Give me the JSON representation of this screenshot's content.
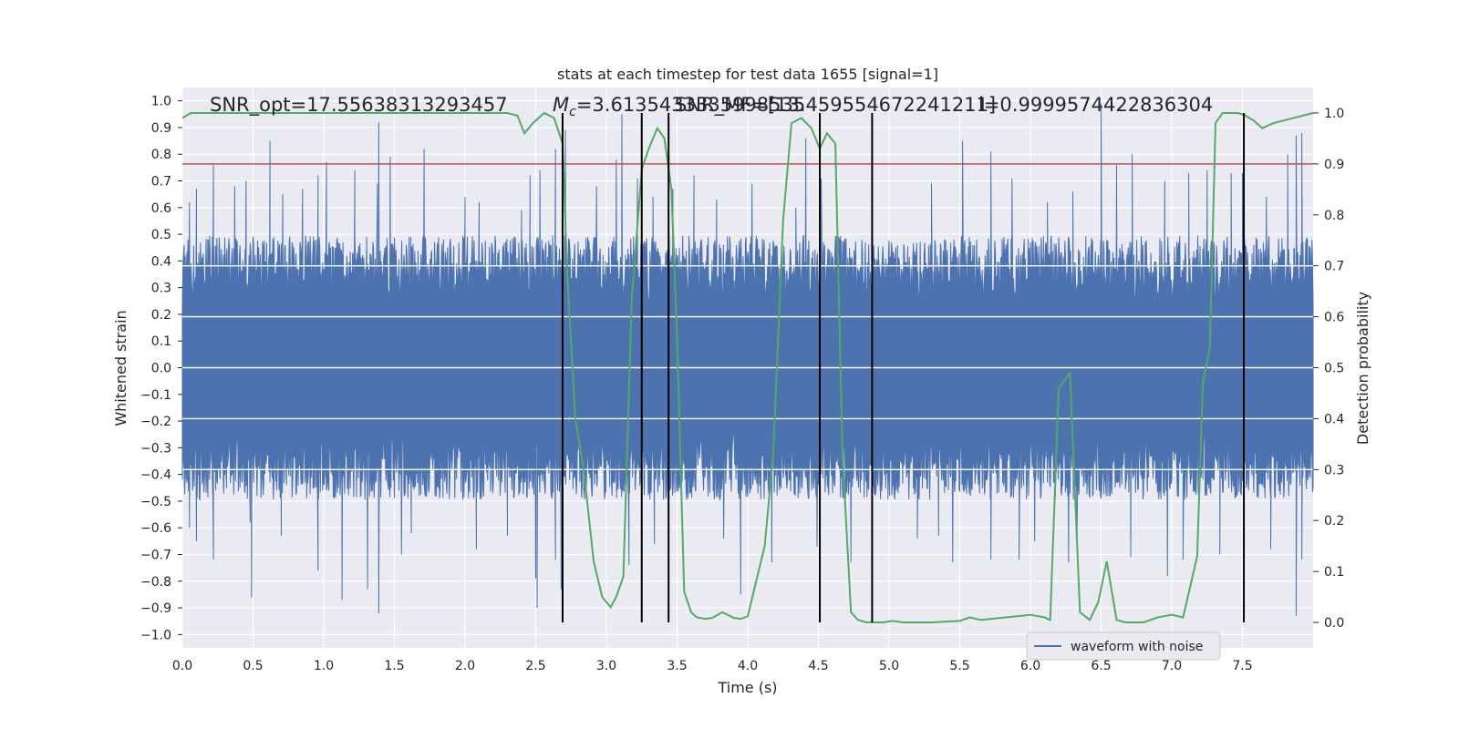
{
  "chart_data": {
    "type": "line",
    "title": "stats at each timestep for test data 1655 [signal=1]",
    "xlabel": "Time (s)",
    "ylabel": "Whitened strain",
    "y2label": "Detection probability",
    "xlim": [
      0.0,
      8.0
    ],
    "ylim": [
      -1.05,
      1.05
    ],
    "y2lim": [
      -0.05,
      1.05
    ],
    "xticks": [
      "0.0",
      "0.5",
      "1.0",
      "1.5",
      "2.0",
      "2.5",
      "3.0",
      "3.5",
      "4.0",
      "4.5",
      "5.0",
      "5.5",
      "6.0",
      "6.5",
      "7.0",
      "7.5"
    ],
    "yticks": [
      "1.0",
      "0.9",
      "0.8",
      "0.7",
      "0.6",
      "0.5",
      "0.4",
      "0.3",
      "0.2",
      "0.1",
      "0.0",
      "−0.1",
      "−0.2",
      "−0.3",
      "−0.4",
      "−0.5",
      "−0.6",
      "−0.7",
      "−0.8",
      "−0.9",
      "−1.0"
    ],
    "y2ticks": [
      "1.0",
      "0.9",
      "0.8",
      "0.7",
      "0.6",
      "0.5",
      "0.4",
      "0.3",
      "0.2",
      "0.1",
      "0.0"
    ],
    "annotations": {
      "snr_opt": "SNR_opt=17.55638313293457",
      "mc": "=3.6135433335998535",
      "mc_symbol": "M",
      "mc_sub": "c",
      "snr_mf": "SNR_MF=[13.459554672241211]",
      "l": "l=0.9999574422836304"
    },
    "threshold": {
      "value": 0.9,
      "axis": "right",
      "color": "#c44e52"
    },
    "vlines": [
      2.69,
      3.25,
      3.44,
      4.51,
      4.88,
      7.51
    ],
    "series": [
      {
        "name": "waveform with noise",
        "color": "#4c72b0",
        "axis": "left",
        "envelope": {
          "x_step": 0.02,
          "upper_typical": 0.45,
          "lower_typical": -0.45,
          "spikes_upper": [
            [
              0.05,
              0.62
            ],
            [
              0.1,
              0.67
            ],
            [
              0.22,
              0.76
            ],
            [
              0.37,
              0.68
            ],
            [
              0.45,
              0.7
            ],
            [
              0.62,
              0.85
            ],
            [
              0.71,
              0.65
            ],
            [
              0.85,
              0.67
            ],
            [
              0.96,
              0.72
            ],
            [
              1.02,
              0.77
            ],
            [
              1.22,
              0.74
            ],
            [
              1.38,
              0.69
            ],
            [
              1.39,
              0.92
            ],
            [
              1.47,
              0.79
            ],
            [
              1.71,
              0.82
            ],
            [
              2.0,
              0.64
            ],
            [
              2.1,
              0.62
            ],
            [
              2.4,
              0.59
            ],
            [
              2.46,
              0.72
            ],
            [
              2.53,
              0.74
            ],
            [
              2.64,
              0.82
            ],
            [
              2.71,
              0.89
            ],
            [
              2.93,
              0.68
            ],
            [
              3.07,
              0.78
            ],
            [
              3.11,
              0.95
            ],
            [
              3.22,
              0.71
            ],
            [
              3.33,
              0.64
            ],
            [
              3.47,
              0.67
            ],
            [
              3.62,
              0.72
            ],
            [
              3.78,
              0.63
            ],
            [
              4.03,
              0.69
            ],
            [
              4.34,
              0.6
            ],
            [
              4.41,
              0.86
            ],
            [
              4.52,
              0.71
            ],
            [
              5.3,
              0.69
            ],
            [
              5.52,
              0.85
            ],
            [
              5.72,
              0.81
            ],
            [
              5.87,
              0.71
            ],
            [
              6.12,
              0.62
            ],
            [
              6.3,
              0.66
            ],
            [
              6.5,
              0.99
            ],
            [
              6.61,
              0.76
            ],
            [
              6.72,
              0.8
            ],
            [
              6.95,
              0.7
            ],
            [
              7.12,
              0.73
            ],
            [
              7.25,
              0.74
            ],
            [
              7.42,
              0.73
            ],
            [
              7.5,
              0.73
            ],
            [
              7.67,
              0.64
            ],
            [
              7.82,
              0.8
            ],
            [
              7.88,
              0.87
            ],
            [
              7.92,
              0.88
            ]
          ],
          "spikes_lower": [
            [
              0.05,
              -0.6
            ],
            [
              0.1,
              -0.65
            ],
            [
              0.22,
              -0.72
            ],
            [
              0.48,
              -0.58
            ],
            [
              0.49,
              -0.86
            ],
            [
              0.7,
              -0.63
            ],
            [
              0.96,
              -0.76
            ],
            [
              1.13,
              -0.87
            ],
            [
              1.31,
              -0.83
            ],
            [
              1.39,
              -0.92
            ],
            [
              1.55,
              -0.7
            ],
            [
              1.62,
              -0.62
            ],
            [
              2.08,
              -0.68
            ],
            [
              2.3,
              -0.63
            ],
            [
              2.5,
              -0.79
            ],
            [
              2.51,
              -0.9
            ],
            [
              2.64,
              -0.72
            ],
            [
              2.68,
              -0.83
            ],
            [
              3.16,
              -0.74
            ],
            [
              3.34,
              -0.66
            ],
            [
              3.44,
              -0.75
            ],
            [
              3.83,
              -0.64
            ],
            [
              3.95,
              -0.85
            ],
            [
              4.17,
              -0.73
            ],
            [
              4.49,
              -0.67
            ],
            [
              4.73,
              -0.73
            ],
            [
              5.2,
              -0.64
            ],
            [
              5.35,
              -0.63
            ],
            [
              5.45,
              -0.73
            ],
            [
              5.72,
              -0.72
            ],
            [
              5.92,
              -0.72
            ],
            [
              6.03,
              -0.65
            ],
            [
              6.27,
              -0.73
            ],
            [
              6.33,
              -0.63
            ],
            [
              6.71,
              -0.71
            ],
            [
              6.97,
              -0.78
            ],
            [
              7.08,
              -0.72
            ],
            [
              7.34,
              -0.7
            ],
            [
              7.51,
              -0.72
            ],
            [
              7.7,
              -0.68
            ],
            [
              7.88,
              -0.93
            ],
            [
              7.92,
              -0.72
            ]
          ]
        }
      },
      {
        "name": "detection probability",
        "color": "#55a868",
        "axis": "right",
        "x": [
          0.0,
          0.06,
          0.15,
          0.5,
          1.0,
          1.5,
          2.0,
          2.3,
          2.37,
          2.42,
          2.48,
          2.56,
          2.63,
          2.69,
          2.72,
          2.78,
          2.84,
          2.91,
          2.97,
          3.03,
          3.07,
          3.12,
          3.18,
          3.22,
          3.25,
          3.3,
          3.36,
          3.41,
          3.46,
          3.5,
          3.55,
          3.6,
          3.64,
          3.7,
          3.75,
          3.82,
          3.9,
          3.95,
          4.0,
          4.05,
          4.12,
          4.18,
          4.25,
          4.31,
          4.38,
          4.45,
          4.51,
          4.56,
          4.62,
          4.67,
          4.73,
          4.78,
          4.84,
          4.9,
          4.96,
          5.02,
          5.1,
          5.2,
          5.3,
          5.5,
          5.57,
          5.65,
          6.0,
          6.1,
          6.14,
          6.2,
          6.28,
          6.35,
          6.42,
          6.48,
          6.54,
          6.61,
          6.67,
          6.74,
          6.8,
          6.9,
          7.0,
          7.08,
          7.18,
          7.22,
          7.27,
          7.31,
          7.36,
          7.42,
          7.47,
          7.52,
          7.58,
          7.64,
          7.72,
          8.0
        ],
        "y": [
          0.99,
          1.0,
          1.0,
          1.0,
          1.0,
          1.0,
          1.0,
          1.0,
          0.995,
          0.96,
          0.98,
          1.0,
          0.99,
          0.94,
          0.7,
          0.4,
          0.3,
          0.12,
          0.05,
          0.03,
          0.05,
          0.09,
          0.64,
          0.78,
          0.89,
          0.93,
          0.97,
          0.95,
          0.85,
          0.56,
          0.06,
          0.02,
          0.01,
          0.007,
          0.009,
          0.02,
          0.009,
          0.007,
          0.012,
          0.07,
          0.15,
          0.33,
          0.79,
          0.98,
          0.99,
          0.97,
          0.93,
          0.96,
          0.94,
          0.33,
          0.02,
          0.005,
          0.0,
          0.0,
          0.0,
          0.003,
          0.0,
          0.0,
          0.0,
          0.003,
          0.01,
          0.005,
          0.015,
          0.01,
          0.005,
          0.46,
          0.49,
          0.02,
          0.005,
          0.04,
          0.12,
          0.005,
          0.0,
          0.0,
          0.0,
          0.01,
          0.015,
          0.01,
          0.13,
          0.47,
          0.54,
          0.98,
          1.0,
          1.0,
          1.0,
          0.995,
          0.985,
          0.97,
          0.98,
          1.0
        ]
      }
    ],
    "legend": {
      "placement": "lower-right",
      "entry": "waveform with noise"
    },
    "grid": true,
    "background": "#eaeaf2"
  }
}
